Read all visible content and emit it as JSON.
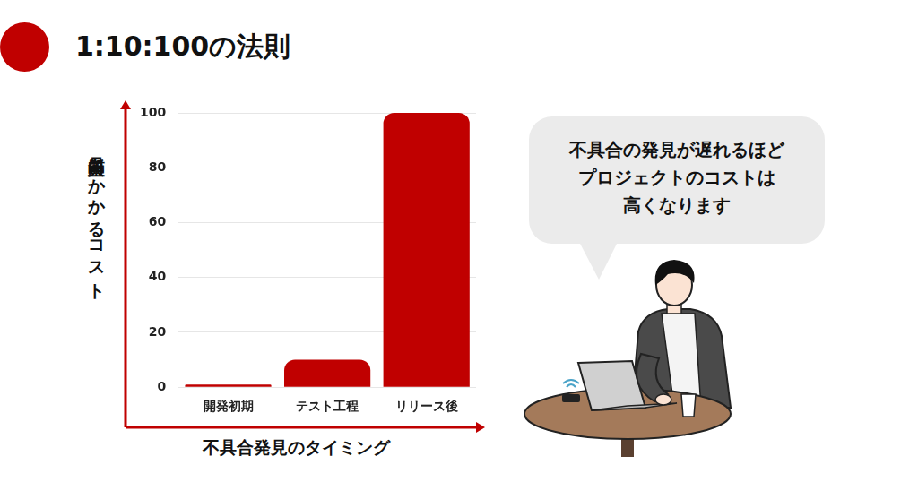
{
  "chart_data": {
    "type": "bar",
    "title": "1:10:100の法則",
    "categories": [
      "開発初期",
      "テスト工程",
      "リリース後"
    ],
    "values": [
      1,
      10,
      100
    ],
    "color": "#c00000",
    "ylim": [
      0,
      100
    ],
    "yticks": [
      0,
      20,
      40,
      60,
      80,
      100
    ],
    "grid": true,
    "x_label": "不具合発見のタイミング",
    "y_label": "品質向上にかかるコスト",
    "annotation": "不具合の発見が遅れるほど\nプロジェクトのコストは\n高くなります"
  }
}
